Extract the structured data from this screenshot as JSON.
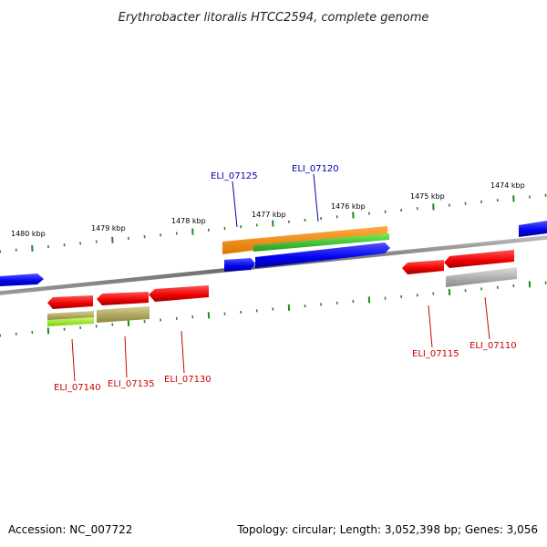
{
  "title": "Erythrobacter litoralis HTCC2594, complete genome",
  "accession": "Accession: NC_007722",
  "summary": "Topology: circular; Length: 3,052,398 bp; Genes: 3,056",
  "scale_labels": [
    "1480 kbp",
    "1479 kbp",
    "1478 kbp",
    "1477 kbp",
    "1476 kbp",
    "1475 kbp",
    "1474 kbp"
  ],
  "gene_labels": {
    "top": [
      "ELI_07125",
      "ELI_07120"
    ],
    "bottom": [
      "ELI_07140",
      "ELI_07135",
      "ELI_07130",
      "ELI_07115",
      "ELI_07110"
    ]
  },
  "colors": {
    "forward_label": "#0000aa",
    "reverse_label": "#cc0000",
    "cds_forward": "#0000ee",
    "cds_reverse": "#ee0000",
    "gene_orange": "#ff8c00",
    "gene_green": "#33cc33",
    "gene_olive": "#b5aa5a",
    "gene_lime": "#99ee22",
    "gene_gray": "#aaaaaa",
    "ticks": "#228822",
    "backbone": "#777777"
  }
}
